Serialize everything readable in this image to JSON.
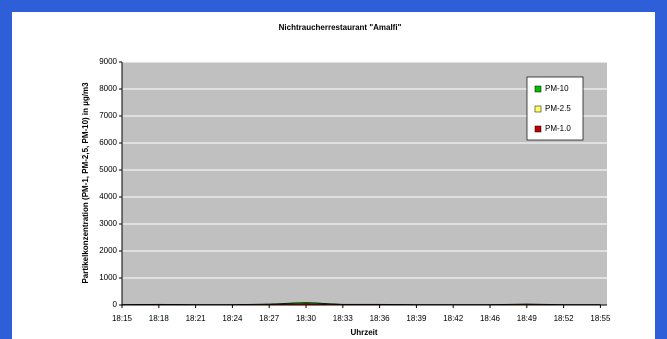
{
  "chart_data": {
    "type": "area",
    "title": "Nichtraucherrestaurant \"Amalfi\"",
    "x_label": "Uhrzeit",
    "y_label": "Partikelkonzentration (PM-1, PM-2,5, PM-10) in µg/m3",
    "categories": [
      "18:15",
      "18:18",
      "18:21",
      "18:24",
      "18:27",
      "18:30",
      "18:33",
      "18:36",
      "18:39",
      "18:42",
      "18:46",
      "18:49",
      "18:52",
      "18:55"
    ],
    "series": [
      {
        "name": "PM-10",
        "color": "#00c000",
        "values": [
          20,
          30,
          20,
          20,
          40,
          100,
          30,
          30,
          20,
          20,
          20,
          40,
          20,
          20
        ]
      },
      {
        "name": "PM-2.5",
        "color": "#ffff66",
        "values": [
          15,
          20,
          15,
          15,
          25,
          60,
          20,
          20,
          15,
          15,
          15,
          25,
          15,
          15
        ]
      },
      {
        "name": "PM-1.0",
        "color": "#c00000",
        "values": [
          10,
          15,
          10,
          10,
          20,
          40,
          15,
          15,
          10,
          10,
          10,
          20,
          10,
          10
        ]
      }
    ],
    "ylim": [
      0,
      9000
    ],
    "yticks": [
      0,
      1000,
      2000,
      3000,
      4000,
      5000,
      6000,
      7000,
      8000,
      9000
    ],
    "grid": true
  }
}
